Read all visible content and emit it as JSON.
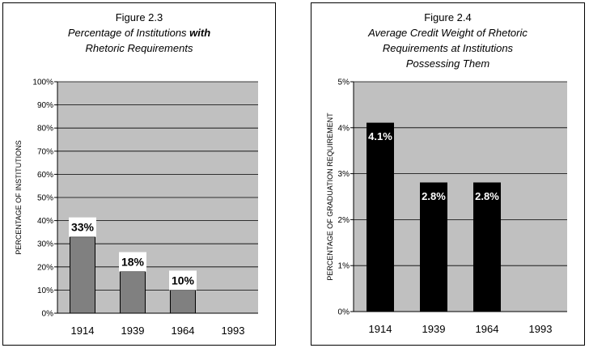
{
  "chart_data": [
    {
      "type": "bar",
      "title": "Figure 2.3",
      "subtitle": [
        "Percentage of Institutions ",
        "with",
        "Rhetoric Requirements"
      ],
      "ylabel": "PERCENTAGE OF INSTITUTIONS",
      "xlabel": "",
      "categories": [
        "1914",
        "1939",
        "1964",
        "1993"
      ],
      "values": [
        33,
        18,
        10,
        null
      ],
      "data_labels": [
        "33%",
        "18%",
        "10%",
        ""
      ],
      "ylim": [
        0,
        100
      ],
      "yticks": [
        0,
        10,
        20,
        30,
        40,
        50,
        60,
        70,
        80,
        90,
        100
      ],
      "ytick_labels": [
        "0%",
        "10%",
        "20%",
        "30%",
        "40%",
        "50%",
        "60%",
        "70%",
        "80%",
        "90%",
        "100%"
      ],
      "grid": true,
      "bar_color": "#808080",
      "plot_background": "#c0c0c0"
    },
    {
      "type": "bar",
      "title": "Figure 2.4",
      "subtitle": [
        "Average Credit Weight of Rhetoric",
        "Requirements at Institutions",
        "Possessing Them"
      ],
      "ylabel": "PERCENTAGE OF GRADUATION REQUIREMENT",
      "xlabel": "",
      "categories": [
        "1914",
        "1939",
        "1964",
        "1993"
      ],
      "values": [
        4.1,
        2.8,
        2.8,
        null
      ],
      "data_labels": [
        "4.1%",
        "2.8%",
        "2.8%",
        ""
      ],
      "ylim": [
        0,
        5
      ],
      "yticks": [
        0,
        1,
        2,
        3,
        4,
        5
      ],
      "ytick_labels": [
        "0%",
        "1%",
        "2%",
        "3%",
        "4%",
        "5%"
      ],
      "grid": true,
      "bar_color": "#000000",
      "plot_background": "#c0c0c0"
    }
  ]
}
